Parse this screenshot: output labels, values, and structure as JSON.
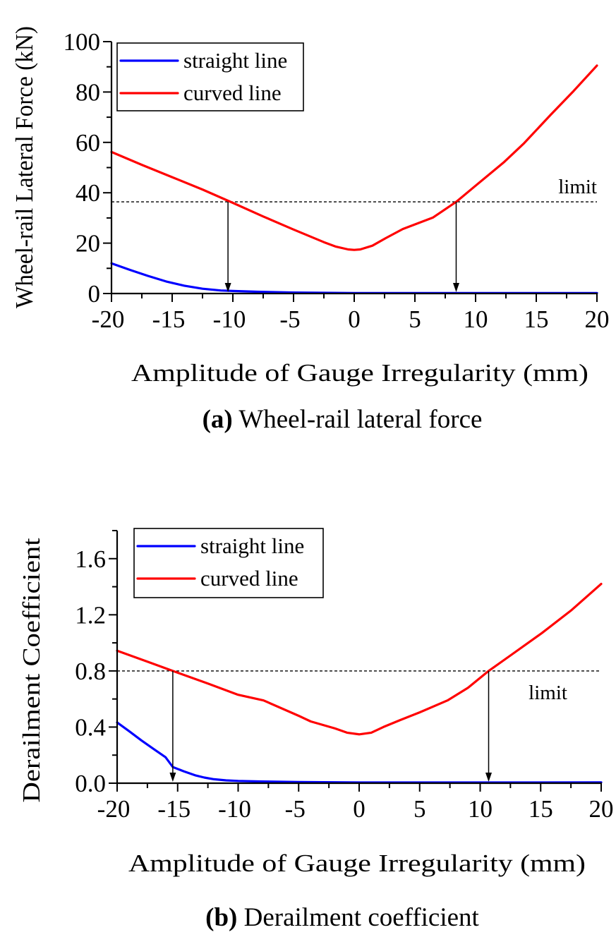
{
  "chart_data": [
    {
      "id": "a",
      "type": "line",
      "caption_label": "(a)",
      "caption_text": "Wheel-rail lateral force",
      "xlabel": "Amplitude of Gauge Irregularity (mm)",
      "ylabel": "Wheel-rail Lateral Force (kN)",
      "xlim": [
        -20,
        20
      ],
      "ylim": [
        0,
        100
      ],
      "xticks": [
        -20,
        -15,
        -10,
        -5,
        0,
        5,
        10,
        15,
        20
      ],
      "xtick_labels": [
        "-20",
        "-15",
        "-10",
        "-5",
        "0",
        "5",
        "10",
        "15",
        "20"
      ],
      "yticks": [
        0,
        20,
        40,
        60,
        80,
        100
      ],
      "ytick_labels": [
        "0",
        "20",
        "40",
        "60",
        "80",
        "100"
      ],
      "x_minor_step": 2.5,
      "y_minor_step": 10,
      "grid": false,
      "legend_position": "top-left",
      "limit": {
        "value": 36.4,
        "label": "limit",
        "label_x": 20,
        "label_position": "above"
      },
      "arrows": [
        {
          "x": -10.4
        },
        {
          "x": 8.4
        }
      ],
      "series": [
        {
          "name": "straight line",
          "color": "#0000ff",
          "x": [
            -20,
            -18.5,
            -17,
            -15.5,
            -14,
            -12.5,
            -11,
            -10,
            -8,
            -5,
            0,
            5,
            10,
            15,
            20
          ],
          "y": [
            12.0,
            9.4,
            7.0,
            4.8,
            3.1,
            1.9,
            1.2,
            1.0,
            0.7,
            0.4,
            0.2,
            0.2,
            0.2,
            0.2,
            0.2
          ]
        },
        {
          "name": "curved line",
          "color": "#ff0000",
          "x": [
            -20,
            -17.5,
            -15,
            -12.5,
            -10,
            -7.5,
            -5,
            -2.5,
            -1.5,
            -0.5,
            0,
            0.5,
            1.5,
            2.6,
            4,
            6.5,
            8.4,
            10,
            12.3,
            14,
            16.2,
            18,
            20
          ],
          "y": [
            56.2,
            51.1,
            46.2,
            41.3,
            36.0,
            30.6,
            25.4,
            20.4,
            18.6,
            17.5,
            17.3,
            17.5,
            19.0,
            22.0,
            25.6,
            30.2,
            36.4,
            42.8,
            52.0,
            59.7,
            71.0,
            80.0,
            90.5
          ]
        }
      ]
    },
    {
      "id": "b",
      "type": "line",
      "caption_label": "(b)",
      "caption_text": "Derailment coefficient",
      "xlabel": "Amplitude of Gauge Irregularity (mm)",
      "ylabel": "Derailment Coefficient",
      "xlim": [
        -20,
        20
      ],
      "ylim": [
        0,
        1.8
      ],
      "xticks": [
        -20,
        -15,
        -10,
        -5,
        0,
        5,
        10,
        15,
        20
      ],
      "xtick_labels": [
        "-20",
        "-15",
        "-10",
        "-5",
        "0",
        "5",
        "10",
        "15",
        "20"
      ],
      "yticks": [
        0,
        0.4,
        0.8,
        1.2,
        1.6
      ],
      "ytick_labels": [
        "0.0",
        "0.4",
        "0.8",
        "1.2",
        "1.6"
      ],
      "x_minor_step": 2.5,
      "y_minor_step": 0.2,
      "grid": false,
      "legend_position": "top-left",
      "limit": {
        "value": 0.8,
        "label": "limit",
        "label_x": 17.2,
        "label_position": "below"
      },
      "arrows": [
        {
          "x": -15.4
        },
        {
          "x": 10.7
        }
      ],
      "series": [
        {
          "name": "straight line",
          "color": "#0000ff",
          "x": [
            -20,
            -19,
            -18,
            -17,
            -16,
            -15.4,
            -14.5,
            -13.5,
            -12.8,
            -12,
            -11,
            -10,
            -8,
            -5,
            0,
            5,
            10,
            15,
            20
          ],
          "y": [
            0.433,
            0.37,
            0.305,
            0.245,
            0.185,
            0.115,
            0.085,
            0.055,
            0.04,
            0.028,
            0.02,
            0.016,
            0.012,
            0.008,
            0.005,
            0.005,
            0.005,
            0.005,
            0.006
          ]
        },
        {
          "name": "curved line",
          "color": "#ff0000",
          "x": [
            -20,
            -17.5,
            -15.4,
            -12.5,
            -10,
            -7.9,
            -5,
            -4,
            -2,
            -1,
            0,
            1,
            2,
            3.4,
            5,
            7.3,
            9,
            10.7,
            12.5,
            15.1,
            17.5,
            20
          ],
          "y": [
            0.944,
            0.866,
            0.8,
            0.71,
            0.63,
            0.59,
            0.48,
            0.44,
            0.39,
            0.36,
            0.348,
            0.36,
            0.4,
            0.45,
            0.505,
            0.59,
            0.68,
            0.8,
            0.91,
            1.07,
            1.23,
            1.42
          ]
        }
      ]
    }
  ]
}
